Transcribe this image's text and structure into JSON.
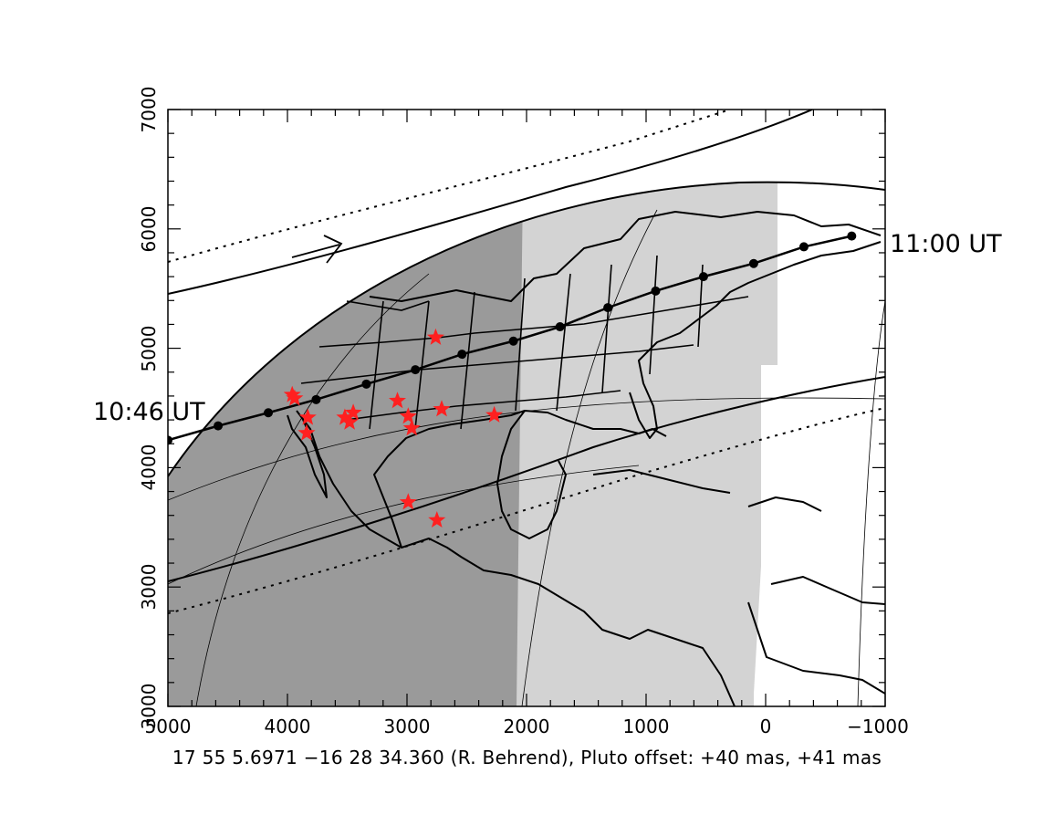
{
  "chart_data": {
    "type": "map",
    "x_ticks": [
      "5000",
      "4000",
      "3000",
      "2000",
      "1000",
      "0",
      "−1000"
    ],
    "y_ticks": [
      "3000",
      "3000",
      "4000",
      "5000",
      "6000",
      "7000"
    ],
    "xlim": [
      5000,
      -1000
    ],
    "ylim": [
      2000,
      7000
    ],
    "start_time_label": "10:46  UT",
    "end_time_label": "11:00  UT",
    "caption": "17 55  5.6971 −16 28 34.360 (R. Behrend), Pluto offset: +40 mas, +41 mas",
    "colors": {
      "night_shade": "#9a9a9a",
      "twilight_shade": "#d3d3d3",
      "station_star": "#ff2020",
      "track": "#000000"
    },
    "central_track_points": [
      {
        "x": 5000,
        "y": 4230
      },
      {
        "x": 4580,
        "y": 4350
      },
      {
        "x": 4160,
        "y": 4460
      },
      {
        "x": 3760,
        "y": 4570
      },
      {
        "x": 3340,
        "y": 4700
      },
      {
        "x": 2930,
        "y": 4820
      },
      {
        "x": 2540,
        "y": 4950
      },
      {
        "x": 2110,
        "y": 5060
      },
      {
        "x": 1720,
        "y": 5180
      },
      {
        "x": 1320,
        "y": 5340
      },
      {
        "x": 920,
        "y": 5480
      },
      {
        "x": 520,
        "y": 5600
      },
      {
        "x": 100,
        "y": 5710
      },
      {
        "x": -320,
        "y": 5850
      },
      {
        "x": -720,
        "y": 5940
      }
    ],
    "station_stars": [
      {
        "x": 2760,
        "y": 5090
      },
      {
        "x": 3960,
        "y": 4610
      },
      {
        "x": 3940,
        "y": 4580
      },
      {
        "x": 3080,
        "y": 4560
      },
      {
        "x": 2710,
        "y": 4490
      },
      {
        "x": 2270,
        "y": 4440
      },
      {
        "x": 3450,
        "y": 4460
      },
      {
        "x": 3520,
        "y": 4420
      },
      {
        "x": 3480,
        "y": 4380
      },
      {
        "x": 3830,
        "y": 4420
      },
      {
        "x": 3840,
        "y": 4290
      },
      {
        "x": 2990,
        "y": 4430
      },
      {
        "x": 2960,
        "y": 4330
      },
      {
        "x": 2990,
        "y": 3710
      },
      {
        "x": 2750,
        "y": 3560
      }
    ]
  }
}
